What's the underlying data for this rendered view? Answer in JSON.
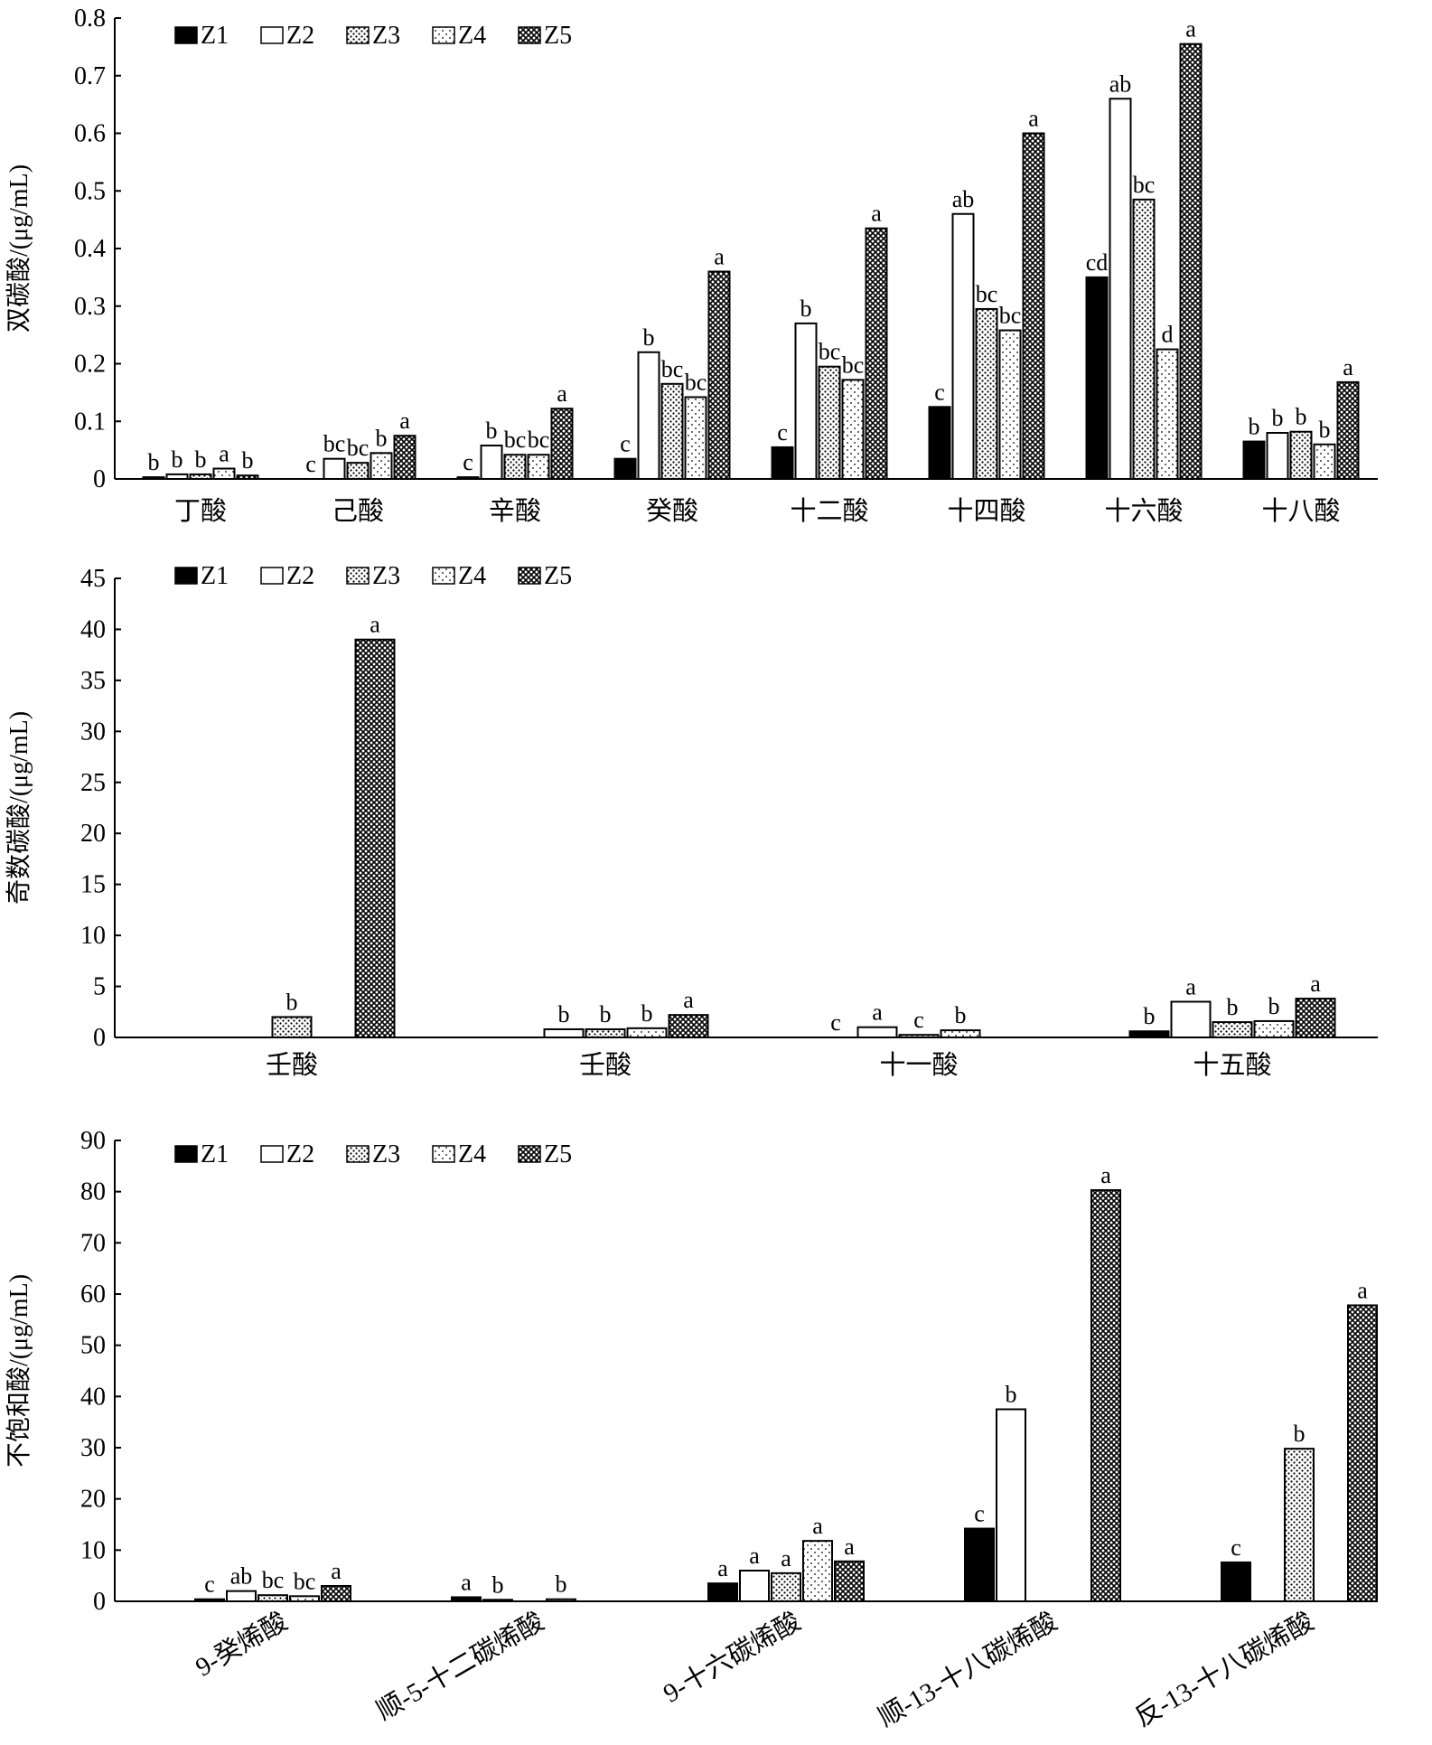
{
  "legend": [
    "Z1",
    "Z2",
    "Z3",
    "Z4",
    "Z5"
  ],
  "series_style": {
    "Z1": "solid-black",
    "Z2": "hollow",
    "Z3": "dense-dots",
    "Z4": "sparse-dots",
    "Z5": "crosshatch"
  },
  "chart_data": [
    {
      "type": "bar",
      "ylabel": "双碳酸/(μg/mL)",
      "ylim": [
        0,
        0.8
      ],
      "yticks": [
        "0",
        "0.1",
        "0.2",
        "0.3",
        "0.4",
        "0.5",
        "0.6",
        "0.7",
        "0.8"
      ],
      "legend_position": "top-left",
      "categories": [
        "丁酸",
        "己酸",
        "辛酸",
        "癸酸",
        "十二酸",
        "十四酸",
        "十六酸",
        "十八酸"
      ],
      "series": [
        {
          "name": "Z1",
          "values": [
            0.003,
            0.0,
            0.003,
            0.035,
            0.055,
            0.125,
            0.35,
            0.065
          ],
          "labels": [
            "b",
            "c",
            "c",
            "c",
            "c",
            "c",
            "cd",
            "b"
          ]
        },
        {
          "name": "Z2",
          "values": [
            0.008,
            0.035,
            0.058,
            0.22,
            0.27,
            0.46,
            0.66,
            0.08
          ],
          "labels": [
            "b",
            "bc",
            "b",
            "b",
            "b",
            "ab",
            "ab",
            "b"
          ]
        },
        {
          "name": "Z3",
          "values": [
            0.008,
            0.028,
            0.042,
            0.165,
            0.195,
            0.295,
            0.485,
            0.082
          ],
          "labels": [
            "b",
            "bc",
            "bc",
            "bc",
            "bc",
            "bc",
            "bc",
            "b"
          ]
        },
        {
          "name": "Z4",
          "values": [
            0.018,
            0.045,
            0.042,
            0.142,
            0.172,
            0.258,
            0.225,
            0.06
          ],
          "labels": [
            "a",
            "b",
            "bc",
            "bc",
            "bc",
            "bc",
            "d",
            "b"
          ]
        },
        {
          "name": "Z5",
          "values": [
            0.006,
            0.075,
            0.122,
            0.36,
            0.435,
            0.6,
            0.755,
            0.168
          ],
          "labels": [
            "b",
            "a",
            "a",
            "a",
            "a",
            "a",
            "a",
            "a"
          ]
        }
      ]
    },
    {
      "type": "bar",
      "ylabel": "奇数碳酸/(μg/mL)",
      "ylim": [
        0,
        45
      ],
      "yticks": [
        "0",
        "5",
        "10",
        "15",
        "20",
        "25",
        "30",
        "35",
        "40",
        "45"
      ],
      "legend_position": "top-left",
      "categories": [
        "壬酸",
        "壬酸",
        "十一酸",
        "十五酸"
      ],
      "series": [
        {
          "name": "Z1",
          "values": [
            0,
            0,
            0,
            0.6
          ],
          "labels": [
            "",
            "",
            "c",
            "b"
          ]
        },
        {
          "name": "Z2",
          "values": [
            0,
            0.8,
            1.0,
            3.5
          ],
          "labels": [
            "",
            "b",
            "a",
            "a"
          ]
        },
        {
          "name": "Z3",
          "values": [
            2.0,
            0.8,
            0.25,
            1.5
          ],
          "labels": [
            "b",
            "b",
            "c",
            "b"
          ]
        },
        {
          "name": "Z4",
          "values": [
            0,
            0.9,
            0.7,
            1.6
          ],
          "labels": [
            "",
            "b",
            "b",
            "b"
          ]
        },
        {
          "name": "Z5",
          "values": [
            39.0,
            2.2,
            0,
            3.8
          ],
          "labels": [
            "a",
            "a",
            "",
            "a"
          ]
        }
      ]
    },
    {
      "type": "bar",
      "ylabel": "不饱和酸/(μg/mL)",
      "ylim": [
        0,
        90
      ],
      "yticks": [
        "0",
        "10",
        "20",
        "30",
        "40",
        "50",
        "60",
        "70",
        "80",
        "90"
      ],
      "legend_position": "top-left",
      "categories": [
        "9-癸烯酸",
        "顺-5-十二碳烯酸",
        "9-十六碳烯酸",
        "顺-13-十八碳烯酸",
        "反-13-十八碳烯酸"
      ],
      "series": [
        {
          "name": "Z1",
          "values": [
            0.4,
            0.8,
            3.5,
            14.2,
            7.6
          ],
          "labels": [
            "c",
            "a",
            "a",
            "c",
            "c"
          ]
        },
        {
          "name": "Z2",
          "values": [
            2.0,
            0.3,
            6.0,
            37.5,
            0
          ],
          "labels": [
            "ab",
            "b",
            "a",
            "b",
            ""
          ]
        },
        {
          "name": "Z3",
          "values": [
            1.2,
            0,
            5.5,
            0,
            29.8
          ],
          "labels": [
            "bc",
            "",
            "a",
            "",
            "b"
          ]
        },
        {
          "name": "Z4",
          "values": [
            1.0,
            0.4,
            11.8,
            0,
            0
          ],
          "labels": [
            "bc",
            "b",
            "a",
            "",
            ""
          ]
        },
        {
          "name": "Z5",
          "values": [
            3.0,
            0,
            7.8,
            80.3,
            57.8
          ],
          "labels": [
            "a",
            "",
            "a",
            "a",
            "a"
          ]
        }
      ]
    }
  ]
}
